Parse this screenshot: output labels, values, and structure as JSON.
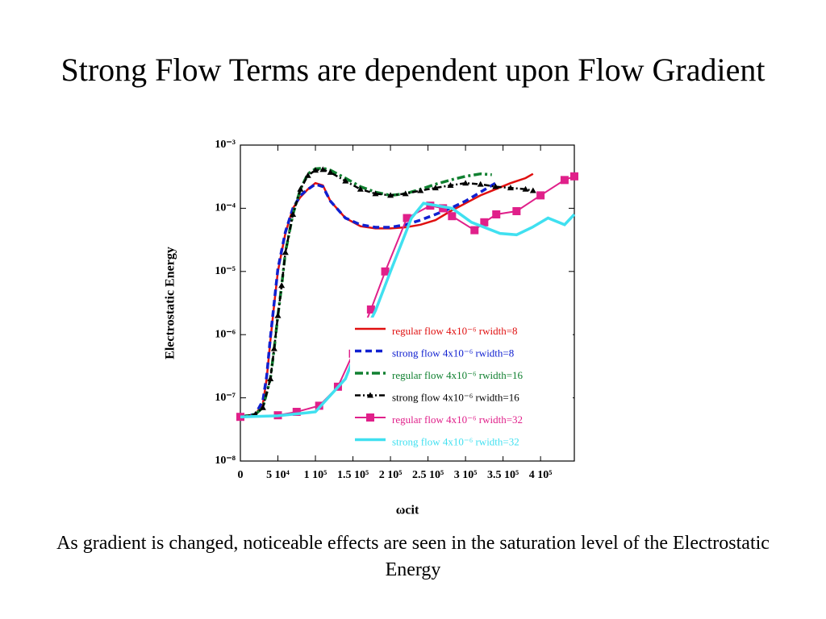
{
  "title": "Strong Flow Terms are dependent upon Flow Gradient",
  "caption": "As gradient is changed, noticeable effects are seen in the saturation level of the Electrostatic Energy",
  "chart_data": {
    "type": "line",
    "ylabel": "Electrostatic Energy",
    "xlabel": "ωcit",
    "ylog": true,
    "xlim": [
      0,
      445000
    ],
    "ylim": [
      1e-08,
      0.001
    ],
    "xticks": [
      0,
      {
        "value": 50000,
        "label": "5 10⁴"
      },
      {
        "value": 100000,
        "label": "1 10⁵"
      },
      {
        "value": 150000,
        "label": "1.5 10⁵"
      },
      {
        "value": 200000,
        "label": "2 10⁵"
      },
      {
        "value": 250000,
        "label": "2.5 10⁵"
      },
      {
        "value": 300000,
        "label": "3 10⁵"
      },
      {
        "value": 350000,
        "label": "3.5 10⁵"
      },
      {
        "value": 400000,
        "label": "4 10⁵"
      }
    ],
    "yticks": [
      {
        "value": 1e-08,
        "label": "10⁻⁸"
      },
      {
        "value": 1e-07,
        "label": "10⁻⁷"
      },
      {
        "value": 1e-06,
        "label": "10⁻⁶"
      },
      {
        "value": 1e-05,
        "label": "10⁻⁵"
      },
      {
        "value": 0.0001,
        "label": "10⁻⁴"
      },
      {
        "value": 0.001,
        "label": "10⁻³"
      }
    ],
    "series": [
      {
        "name": "regular flow 4x10⁻⁶  rwidth=8",
        "color": "#e01010",
        "x": [
          0,
          20000,
          30000,
          35000,
          40000,
          45000,
          50000,
          60000,
          70000,
          80000,
          90000,
          100000,
          110000,
          120000,
          140000,
          160000,
          180000,
          200000,
          220000,
          240000,
          260000,
          280000,
          300000,
          320000,
          340000,
          360000,
          380000,
          390000
        ],
        "values": [
          5e-08,
          5.5e-08,
          8e-08,
          2e-07,
          8e-07,
          3e-06,
          1e-05,
          4e-05,
          0.0001,
          0.00015,
          0.0002,
          0.00025,
          0.00023,
          0.00013,
          7e-05,
          5.2e-05,
          4.8e-05,
          4.8e-05,
          5e-05,
          5.5e-05,
          6.5e-05,
          9e-05,
          0.00012,
          0.00016,
          0.0002,
          0.00025,
          0.0003,
          0.00035
        ]
      },
      {
        "name": "strong flow 4x10⁻⁶  rwidth=8",
        "color": "#1020d0",
        "x": [
          0,
          20000,
          30000,
          35000,
          40000,
          45000,
          50000,
          60000,
          70000,
          80000,
          90000,
          100000,
          110000,
          120000,
          140000,
          160000,
          180000,
          200000,
          220000,
          240000,
          260000,
          280000,
          300000,
          320000,
          340000
        ],
        "values": [
          5e-08,
          5.5e-08,
          9e-08,
          2.2e-07,
          9e-07,
          3.2e-06,
          1.1e-05,
          4.2e-05,
          0.0001,
          0.00016,
          0.0002,
          0.00024,
          0.00022,
          0.00013,
          7e-05,
          5.5e-05,
          5e-05,
          5e-05,
          5.5e-05,
          6.5e-05,
          8e-05,
          0.0001,
          0.00013,
          0.00018,
          0.00025
        ]
      },
      {
        "name": "regular flow 4x10⁻⁶  rwidth=16",
        "color": "#108030",
        "x": [
          0,
          20000,
          30000,
          40000,
          45000,
          50000,
          55000,
          60000,
          70000,
          80000,
          90000,
          100000,
          110000,
          120000,
          140000,
          160000,
          180000,
          200000,
          220000,
          240000,
          260000,
          280000,
          300000,
          320000,
          335000
        ],
        "values": [
          5e-08,
          5.5e-08,
          7e-08,
          2e-07,
          6e-07,
          2e-06,
          6e-06,
          2e-05,
          8e-05,
          0.0002,
          0.00035,
          0.00042,
          0.00043,
          0.0004,
          0.0003,
          0.00022,
          0.00018,
          0.00016,
          0.00017,
          0.0002,
          0.00024,
          0.00028,
          0.00032,
          0.00035,
          0.00034
        ]
      },
      {
        "name": "strong flow 4x10⁻⁶  rwidth=16",
        "color": "#000000",
        "x": [
          0,
          20000,
          30000,
          40000,
          45000,
          50000,
          55000,
          60000,
          70000,
          80000,
          90000,
          100000,
          110000,
          120000,
          140000,
          160000,
          180000,
          200000,
          220000,
          240000,
          260000,
          280000,
          300000,
          320000,
          340000,
          360000,
          380000,
          390000
        ],
        "values": [
          5e-08,
          5.5e-08,
          7e-08,
          2e-07,
          6e-07,
          2e-06,
          6e-06,
          2e-05,
          8e-05,
          0.0002,
          0.00033,
          0.0004,
          0.00041,
          0.00037,
          0.00027,
          0.0002,
          0.00017,
          0.00016,
          0.00017,
          0.00019,
          0.00021,
          0.00023,
          0.00025,
          0.00024,
          0.00022,
          0.00021,
          0.0002,
          0.00019
        ]
      },
      {
        "name": "regular flow 4x10⁻⁶  rwidth=32",
        "color": "#e0208a",
        "x": [
          0,
          50000,
          75000,
          105000,
          130000,
          150000,
          174000,
          193000,
          222000,
          253000,
          270000,
          282000,
          312000,
          325000,
          341000,
          368000,
          400000,
          432000,
          445000
        ],
        "values": [
          5e-08,
          5.3e-08,
          6e-08,
          7.5e-08,
          1.5e-07,
          5e-07,
          2.5e-06,
          1e-05,
          7e-05,
          0.00011,
          0.0001,
          7.5e-05,
          4.5e-05,
          6e-05,
          8e-05,
          9e-05,
          0.00016,
          0.00028,
          0.00032
        ]
      },
      {
        "name": "strong flow 4x10⁻⁶  rwidth=32",
        "color": "#40e0f0",
        "x": [
          0,
          50000,
          100000,
          140000,
          160000,
          180000,
          200000,
          228000,
          244000,
          282000,
          308000,
          346000,
          368000,
          389000,
          410000,
          432000,
          445000
        ],
        "values": [
          5e-08,
          5.2e-08,
          6e-08,
          2e-07,
          8e-07,
          2.4e-06,
          1e-05,
          7e-05,
          0.00012,
          0.0001,
          6e-05,
          4e-05,
          3.8e-05,
          5e-05,
          7e-05,
          5.5e-05,
          8e-05
        ]
      }
    ]
  }
}
